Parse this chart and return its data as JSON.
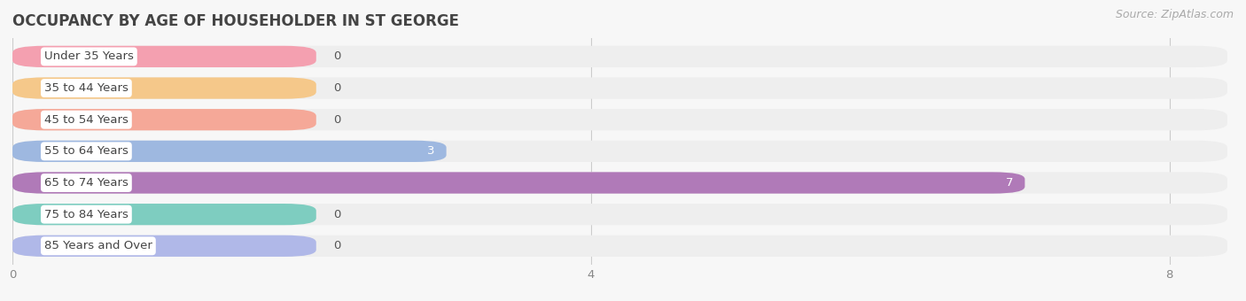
{
  "title": "OCCUPANCY BY AGE OF HOUSEHOLDER IN ST GEORGE",
  "source": "Source: ZipAtlas.com",
  "categories": [
    "Under 35 Years",
    "35 to 44 Years",
    "45 to 54 Years",
    "55 to 64 Years",
    "65 to 74 Years",
    "75 to 84 Years",
    "85 Years and Over"
  ],
  "values": [
    0,
    0,
    0,
    3,
    7,
    0,
    0
  ],
  "bar_colors": [
    "#f4a0b0",
    "#f5c88a",
    "#f5a898",
    "#9eb8e0",
    "#b07ab8",
    "#7ecdc0",
    "#b0b8e8"
  ],
  "background_color": "#f7f7f7",
  "bar_bg_color": "#eeeeee",
  "xlim": [
    0,
    8.4
  ],
  "xticks": [
    0,
    4,
    8
  ],
  "title_fontsize": 12,
  "label_fontsize": 9.5,
  "value_fontsize": 9.5,
  "bar_height": 0.68,
  "short_bar_width": 2.1,
  "fig_width": 14.06,
  "fig_height": 3.4
}
